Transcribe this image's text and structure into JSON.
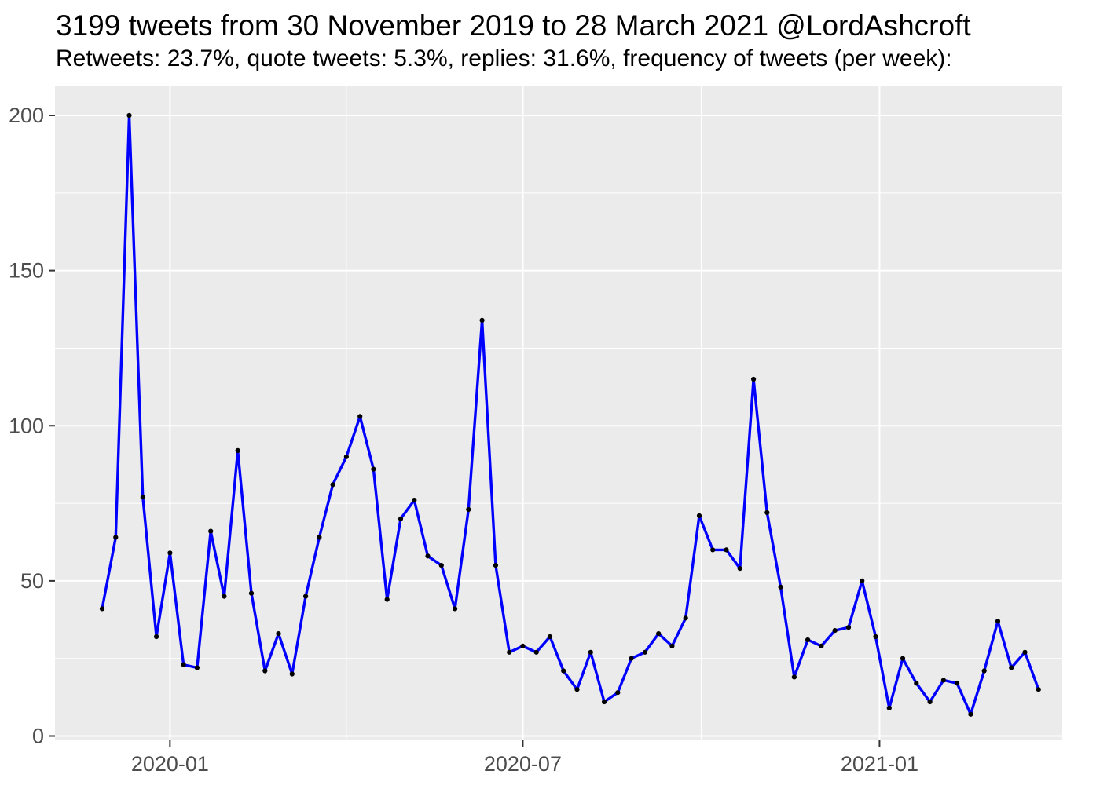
{
  "header": {
    "title": "3199 tweets from 30 November 2019 to 28 March 2021 @LordAshcroft",
    "subtitle": "Retweets: 23.7%, quote tweets: 5.3%, replies: 31.6%, frequency of tweets (per week):"
  },
  "stats": {
    "total_tweets": 3199,
    "account": "@LordAshcroft",
    "date_range": "30 November 2019 to 28 March 2021",
    "retweets_pct": "23.7%",
    "quote_tweets_pct": "5.3%",
    "replies_pct": "31.6%"
  },
  "chart_data": {
    "type": "line",
    "title": "3199 tweets from 30 November 2019 to 28 March 2021 @LordAshcroft",
    "subtitle": "Retweets: 23.7%, quote tweets: 5.3%, replies: 31.6%, frequency of tweets (per week):",
    "xlabel": "",
    "ylabel": "",
    "ylim": [
      0,
      200
    ],
    "y_ticks": [
      0,
      50,
      100,
      150,
      200
    ],
    "y_minor_ticks": [
      25,
      75,
      125,
      175
    ],
    "x_ticks": [
      {
        "label": "2020-01",
        "date": "2020-01-01"
      },
      {
        "label": "2020-07",
        "date": "2020-07-01"
      },
      {
        "label": "2021-01",
        "date": "2021-01-01"
      }
    ],
    "x_minor_tick_dates": [
      "2020-04-01",
      "2020-10-01",
      "2021-04-01"
    ],
    "grid": "white major+minor gridlines on gray panel",
    "legend": "none",
    "series": [
      {
        "name": "tweets per week",
        "week_start": [
          "2019-11-27",
          "2019-12-04",
          "2019-12-11",
          "2019-12-18",
          "2019-12-25",
          "2020-01-01",
          "2020-01-08",
          "2020-01-15",
          "2020-01-22",
          "2020-01-29",
          "2020-02-05",
          "2020-02-12",
          "2020-02-19",
          "2020-02-26",
          "2020-03-04",
          "2020-03-11",
          "2020-03-18",
          "2020-03-25",
          "2020-04-01",
          "2020-04-08",
          "2020-04-15",
          "2020-04-22",
          "2020-04-29",
          "2020-05-06",
          "2020-05-13",
          "2020-05-20",
          "2020-05-27",
          "2020-06-03",
          "2020-06-10",
          "2020-06-17",
          "2020-06-24",
          "2020-07-01",
          "2020-07-08",
          "2020-07-15",
          "2020-07-22",
          "2020-07-29",
          "2020-08-05",
          "2020-08-12",
          "2020-08-19",
          "2020-08-26",
          "2020-09-02",
          "2020-09-09",
          "2020-09-16",
          "2020-09-23",
          "2020-09-30",
          "2020-10-07",
          "2020-10-14",
          "2020-10-21",
          "2020-10-28",
          "2020-11-04",
          "2020-11-11",
          "2020-11-18",
          "2020-11-25",
          "2020-12-02",
          "2020-12-09",
          "2020-12-16",
          "2020-12-23",
          "2020-12-30",
          "2021-01-06",
          "2021-01-13",
          "2021-01-20",
          "2021-01-27",
          "2021-02-03",
          "2021-02-10",
          "2021-02-17",
          "2021-02-24",
          "2021-03-03",
          "2021-03-10",
          "2021-03-17",
          "2021-03-24"
        ],
        "values": [
          41,
          64,
          200,
          77,
          32,
          59,
          23,
          22,
          66,
          45,
          92,
          46,
          21,
          33,
          20,
          45,
          64,
          81,
          90,
          103,
          86,
          44,
          70,
          76,
          58,
          55,
          41,
          73,
          134,
          55,
          27,
          29,
          27,
          32,
          21,
          15,
          27,
          11,
          14,
          25,
          27,
          33,
          29,
          38,
          71,
          60,
          60,
          54,
          115,
          72,
          48,
          19,
          31,
          29,
          34,
          35,
          50,
          32,
          9,
          25,
          17,
          11,
          18,
          17,
          7,
          21,
          37,
          22,
          27,
          15
        ]
      }
    ],
    "colors": {
      "line": "#0000FF",
      "point": "#000000",
      "panel_bg": "#EBEBEB",
      "grid": "#FFFFFF",
      "axis_text": "#4D4D4D",
      "tick_mark": "#333333",
      "title_text": "#000000",
      "page_bg": "#FFFFFF"
    }
  }
}
